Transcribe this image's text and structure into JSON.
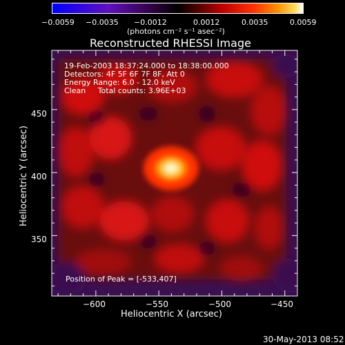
{
  "chart_data": {
    "type": "heatmap",
    "title": "Reconstructed RHESSI Image",
    "xlabel": "Heliocentric X (arcsec)",
    "ylabel": "Heliocentric Y (arcsec)",
    "xlim": [
      -635,
      -440
    ],
    "ylim": [
      302,
      497
    ],
    "xticks": [
      -600,
      -550,
      -500,
      -450
    ],
    "yticks": [
      350,
      400,
      450
    ],
    "xtick_labels": [
      "−600",
      "−550",
      "−500",
      "−450"
    ],
    "ytick_labels": [
      "350",
      "400",
      "450"
    ],
    "colorbar": {
      "min": -0.0059,
      "max": 0.0059,
      "ticks": [
        -0.0059,
        -0.0035,
        -0.0012,
        0.0012,
        0.0035,
        0.0059
      ],
      "tick_labels": [
        "−0.0059",
        "−0.0035",
        "−0.0012",
        "0.0012",
        "0.0035",
        "0.0059"
      ],
      "unit_label": "(photons cm⁻² s⁻¹ asec⁻²)",
      "colormap": [
        "#0000ff",
        "#7000b0",
        "#000000",
        "#c00000",
        "#ff4000",
        "#ffc000",
        "#ffffff"
      ]
    },
    "annotations": [
      "19-Feb-2003 18:37:24.000 to 18:38:00.000",
      "Detectors: 4F 5F 6F 7F 8F, Att 0",
      "Energy Range: 6.0 - 12.0 keV",
      "Clean     Total counts: 3.96E+03"
    ],
    "peak_label": "Position of Peak = [-533,407]",
    "peak": [
      -533,
      407
    ]
  },
  "footer": {
    "date": "30-May-2013 08:52"
  }
}
